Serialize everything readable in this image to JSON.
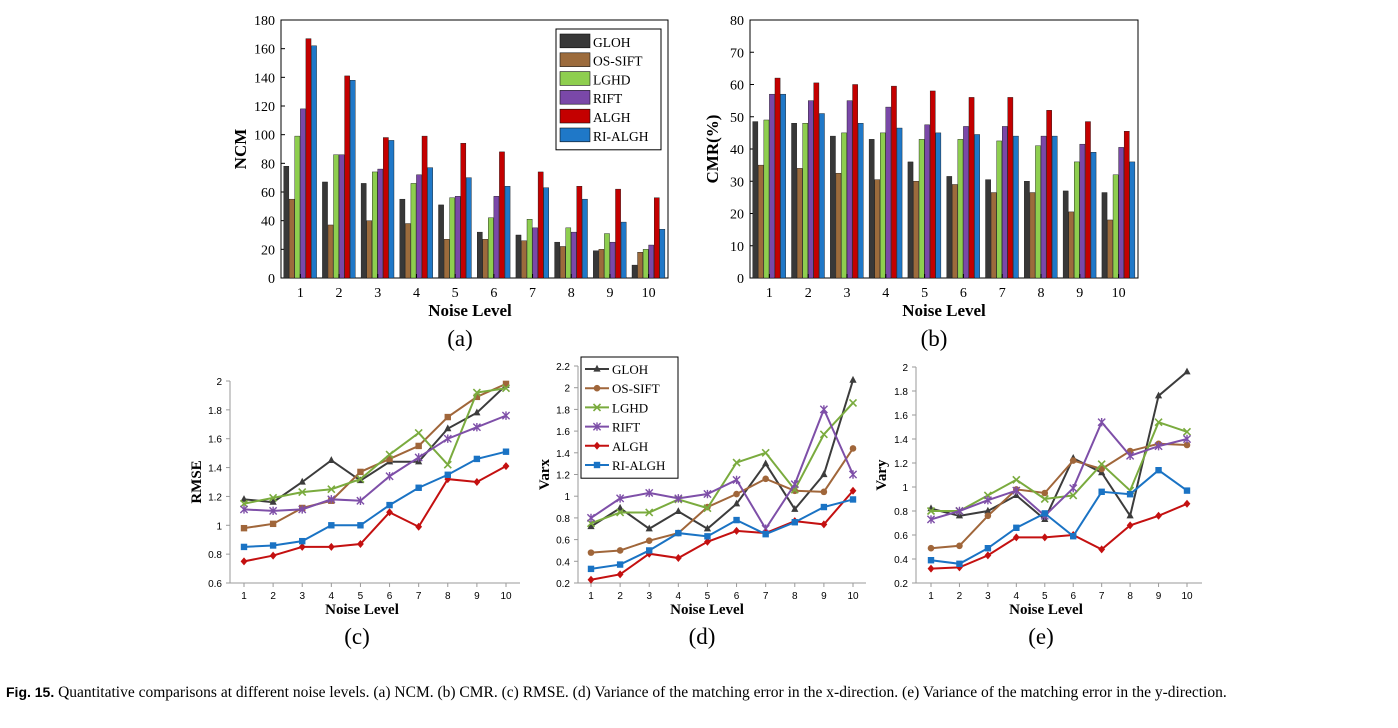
{
  "caption": {
    "label": "Fig. 15.",
    "text": "Quantitative comparisons at different noise levels. (a) NCM. (b) CMR. (c) RMSE. (d) Variance of the matching error in the x-direction. (e) Variance of the matching error in the y-direction."
  },
  "colors": {
    "GLOH": "#383838",
    "OS-SIFT": "#9c6b3c",
    "LGHD": "#8ece4f",
    "RIFT": "#7a48a8",
    "ALGH": "#c40000",
    "RI-ALGH": "#1f78c8"
  },
  "line_colors": {
    "GLOH": "#3c3c3c",
    "OS-SIFT": "#a0663a",
    "LGHD": "#7aab3e",
    "RIFT": "#7e4fa8",
    "ALGH": "#c41010",
    "RI-ALGH": "#1a73c4"
  },
  "chart_data": [
    {
      "id": "a",
      "type": "bar",
      "panel_label": "(a)",
      "xlabel": "Noise Level",
      "ylabel": "NCM",
      "ylim": [
        0,
        180
      ],
      "yticks": [
        0,
        20,
        40,
        60,
        80,
        100,
        120,
        140,
        160,
        180
      ],
      "categories": [
        "1",
        "2",
        "3",
        "4",
        "5",
        "6",
        "7",
        "8",
        "9",
        "10"
      ],
      "legend_position": "top-right",
      "series": [
        {
          "name": "GLOH",
          "values": [
            78,
            67,
            66,
            55,
            51,
            32,
            30,
            25,
            19,
            9
          ]
        },
        {
          "name": "OS-SIFT",
          "values": [
            55,
            37,
            40,
            38,
            27,
            27,
            26,
            22,
            20,
            18
          ]
        },
        {
          "name": "LGHD",
          "values": [
            99,
            86,
            74,
            66,
            56,
            42,
            41,
            35,
            31,
            20
          ]
        },
        {
          "name": "RIFT",
          "values": [
            118,
            86,
            76,
            72,
            57,
            57,
            35,
            32,
            25,
            23
          ]
        },
        {
          "name": "ALGH",
          "values": [
            167,
            141,
            98,
            99,
            94,
            88,
            74,
            64,
            62,
            56
          ]
        },
        {
          "name": "RI-ALGH",
          "values": [
            162,
            138,
            96,
            77,
            70,
            64,
            63,
            55,
            39,
            34
          ]
        }
      ]
    },
    {
      "id": "b",
      "type": "bar",
      "panel_label": "(b)",
      "xlabel": "Noise Level",
      "ylabel": "CMR(%)",
      "ylim": [
        0,
        80
      ],
      "yticks": [
        0,
        10,
        20,
        30,
        40,
        50,
        60,
        70,
        80
      ],
      "categories": [
        "1",
        "2",
        "3",
        "4",
        "5",
        "6",
        "7",
        "8",
        "9",
        "10"
      ],
      "series": [
        {
          "name": "GLOH",
          "values": [
            48.5,
            48,
            44,
            43,
            36,
            31.5,
            30.5,
            30,
            27,
            26.5
          ]
        },
        {
          "name": "OS-SIFT",
          "values": [
            35,
            34,
            32.5,
            30.5,
            30,
            29,
            26.5,
            26.5,
            20.5,
            18
          ]
        },
        {
          "name": "LGHD",
          "values": [
            49,
            48,
            45,
            45,
            43,
            43,
            42.5,
            41,
            36,
            32
          ]
        },
        {
          "name": "RIFT",
          "values": [
            57,
            55,
            55,
            53,
            47.5,
            47,
            47,
            44,
            41.5,
            40.5
          ]
        },
        {
          "name": "ALGH",
          "values": [
            62,
            60.5,
            60,
            59.5,
            58,
            56,
            56,
            52,
            48.5,
            45.5
          ]
        },
        {
          "name": "RI-ALGH",
          "values": [
            57,
            51,
            48,
            46.5,
            45,
            44.5,
            44,
            44,
            39,
            36
          ]
        }
      ]
    },
    {
      "id": "c",
      "type": "line",
      "panel_label": "(c)",
      "xlabel": "Noise Level",
      "ylabel": "RMSE",
      "ylim": [
        0.6,
        2.0
      ],
      "yticks": [
        0.6,
        0.8,
        1,
        1.2,
        1.4,
        1.6,
        1.8,
        2
      ],
      "x": [
        1,
        2,
        3,
        4,
        5,
        6,
        7,
        8,
        9,
        10
      ],
      "series": [
        {
          "name": "GLOH",
          "marker": "triangle",
          "values": [
            1.18,
            1.16,
            1.3,
            1.45,
            1.31,
            1.44,
            1.44,
            1.67,
            1.78,
            1.97
          ]
        },
        {
          "name": "OS-SIFT",
          "marker": "square",
          "values": [
            0.98,
            1.01,
            1.12,
            1.17,
            1.37,
            1.46,
            1.55,
            1.75,
            1.89,
            1.98
          ]
        },
        {
          "name": "LGHD",
          "marker": "x",
          "values": [
            1.15,
            1.19,
            1.23,
            1.25,
            1.32,
            1.49,
            1.64,
            1.42,
            1.92,
            1.95
          ]
        },
        {
          "name": "RIFT",
          "marker": "star",
          "values": [
            1.11,
            1.1,
            1.11,
            1.18,
            1.17,
            1.34,
            1.47,
            1.6,
            1.68,
            1.76
          ]
        },
        {
          "name": "ALGH",
          "marker": "diamond",
          "values": [
            0.75,
            0.79,
            0.85,
            0.85,
            0.87,
            1.09,
            0.99,
            1.32,
            1.3,
            1.41
          ]
        },
        {
          "name": "RI-ALGH",
          "marker": "square",
          "values": [
            0.85,
            0.86,
            0.89,
            1.0,
            1.0,
            1.14,
            1.26,
            1.35,
            1.46,
            1.51
          ]
        }
      ]
    },
    {
      "id": "d",
      "type": "line",
      "panel_label": "(d)",
      "xlabel": "Noise Level",
      "ylabel": "Varx",
      "ylim": [
        0.2,
        2.2
      ],
      "yticks": [
        0.2,
        0.4,
        0.6,
        0.8,
        1,
        1.2,
        1.4,
        1.6,
        1.8,
        2,
        2.2
      ],
      "x": [
        1,
        2,
        3,
        4,
        5,
        6,
        7,
        8,
        9,
        10
      ],
      "legend_position": "top-left",
      "series": [
        {
          "name": "GLOH",
          "marker": "triangle",
          "values": [
            0.72,
            0.89,
            0.7,
            0.86,
            0.7,
            0.93,
            1.3,
            0.88,
            1.2,
            2.07
          ]
        },
        {
          "name": "OS-SIFT",
          "marker": "circle",
          "values": [
            0.48,
            0.5,
            0.59,
            0.66,
            0.9,
            1.02,
            1.16,
            1.05,
            1.04,
            1.44
          ]
        },
        {
          "name": "LGHD",
          "marker": "x",
          "values": [
            0.75,
            0.85,
            0.85,
            0.97,
            0.89,
            1.31,
            1.4,
            1.06,
            1.57,
            1.86
          ]
        },
        {
          "name": "RIFT",
          "marker": "star",
          "values": [
            0.8,
            0.98,
            1.03,
            0.98,
            1.02,
            1.15,
            0.7,
            1.11,
            1.8,
            1.2
          ]
        },
        {
          "name": "ALGH",
          "marker": "diamond",
          "values": [
            0.23,
            0.28,
            0.47,
            0.43,
            0.58,
            0.68,
            0.66,
            0.77,
            0.74,
            1.05
          ]
        },
        {
          "name": "RI-ALGH",
          "marker": "square",
          "values": [
            0.33,
            0.37,
            0.5,
            0.66,
            0.63,
            0.78,
            0.65,
            0.76,
            0.9,
            0.97
          ]
        }
      ]
    },
    {
      "id": "e",
      "type": "line",
      "panel_label": "(e)",
      "xlabel": "Noise Level",
      "ylabel": "Vary",
      "ylim": [
        0.2,
        2.0
      ],
      "yticks": [
        0.2,
        0.4,
        0.6,
        0.8,
        1,
        1.2,
        1.4,
        1.6,
        1.8,
        2
      ],
      "x": [
        1,
        2,
        3,
        4,
        5,
        6,
        7,
        8,
        9,
        10
      ],
      "series": [
        {
          "name": "GLOH",
          "marker": "triangle",
          "values": [
            0.82,
            0.76,
            0.8,
            0.93,
            0.73,
            1.24,
            1.12,
            0.76,
            1.76,
            1.96
          ]
        },
        {
          "name": "OS-SIFT",
          "marker": "circle",
          "values": [
            0.49,
            0.51,
            0.76,
            0.98,
            0.95,
            1.22,
            1.15,
            1.3,
            1.36,
            1.35
          ]
        },
        {
          "name": "LGHD",
          "marker": "x",
          "values": [
            0.8,
            0.8,
            0.93,
            1.06,
            0.9,
            0.93,
            1.19,
            0.97,
            1.54,
            1.46
          ]
        },
        {
          "name": "RIFT",
          "marker": "star",
          "values": [
            0.73,
            0.8,
            0.89,
            0.97,
            0.76,
            0.99,
            1.54,
            1.26,
            1.34,
            1.4
          ]
        },
        {
          "name": "ALGH",
          "marker": "diamond",
          "values": [
            0.32,
            0.33,
            0.43,
            0.58,
            0.58,
            0.6,
            0.48,
            0.68,
            0.76,
            0.86
          ]
        },
        {
          "name": "RI-ALGH",
          "marker": "square",
          "values": [
            0.39,
            0.36,
            0.49,
            0.66,
            0.78,
            0.59,
            0.96,
            0.94,
            1.14,
            0.97
          ]
        }
      ]
    }
  ]
}
